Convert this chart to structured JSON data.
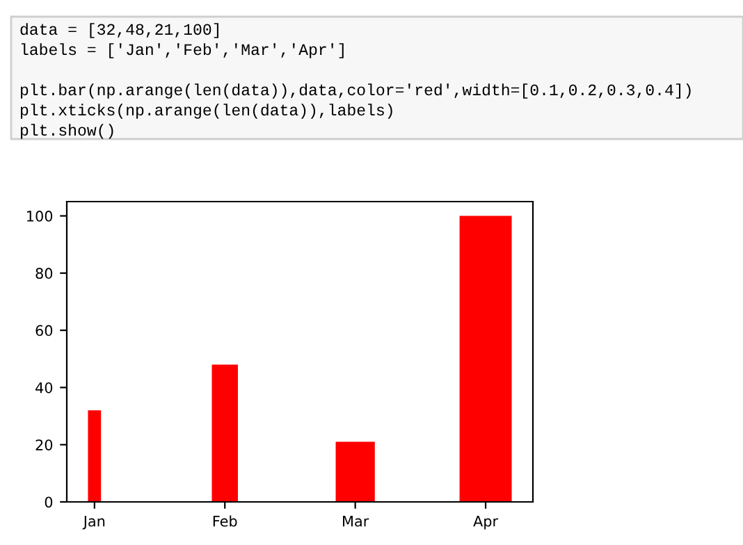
{
  "chart_data": {
    "type": "bar",
    "categories": [
      "Jan",
      "Feb",
      "Mar",
      "Apr"
    ],
    "values": [
      32,
      48,
      21,
      100
    ],
    "color": "#ff0000",
    "ylim": [
      0,
      105
    ],
    "yticks": [
      0,
      20,
      40,
      60,
      80,
      100
    ],
    "grid": false,
    "annotations": [
      "data = [32,48,21,100]",
      "labels = ['Jan','Feb','Mar','Apr']",
      "plt.bar(np.arange(len(data)),data,color='red',width=[0.1,0.2,0.3,0.4])",
      "plt.xticks(np.arange(len(data)),labels)",
      "plt.show()"
    ]
  }
}
